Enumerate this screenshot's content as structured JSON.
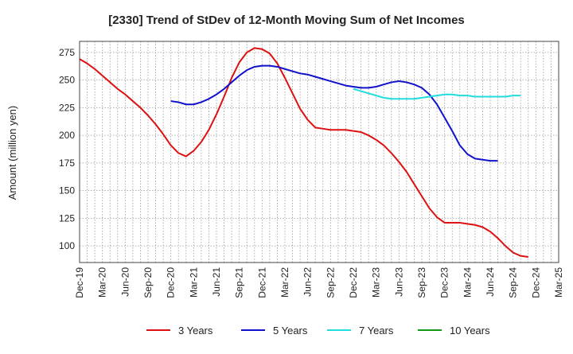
{
  "chart_data": {
    "type": "line",
    "title": "[2330]  Trend of StDev of 12-Month Moving Sum of Net Incomes",
    "xlabel": "",
    "ylabel": "Amount (million yen)",
    "ylim": [
      85,
      285
    ],
    "yticks": [
      100,
      125,
      150,
      175,
      200,
      225,
      250,
      275
    ],
    "xticks": [
      "Dec-19",
      "Mar-20",
      "Jun-20",
      "Sep-20",
      "Dec-20",
      "Mar-21",
      "Jun-21",
      "Sep-21",
      "Dec-21",
      "Mar-22",
      "Jun-22",
      "Sep-22",
      "Dec-22",
      "Mar-23",
      "Jun-23",
      "Sep-23",
      "Dec-23",
      "Mar-24",
      "Jun-24",
      "Sep-24",
      "Dec-24",
      "Mar-25"
    ],
    "grid": true,
    "legend_position": "bottom",
    "series": [
      {
        "name": "3 Years",
        "color": "#dd1111",
        "start": "Dec-19",
        "values": [
          269,
          265,
          260,
          254,
          248,
          242,
          237,
          231,
          225,
          218,
          210,
          201,
          191,
          184,
          181,
          186,
          194,
          205,
          219,
          235,
          252,
          266,
          275,
          279,
          278,
          274,
          265,
          252,
          238,
          224,
          214,
          207,
          206,
          205,
          205,
          205,
          204,
          203,
          200,
          196,
          191,
          184,
          176,
          167,
          156,
          145,
          134,
          126,
          121,
          121,
          121,
          120,
          119,
          117,
          113,
          107,
          100,
          94,
          91,
          90
        ]
      },
      {
        "name": "5 Years",
        "color": "#1111cc",
        "start": "Dec-20",
        "values": [
          231,
          230,
          228,
          228,
          230,
          233,
          237,
          242,
          248,
          254,
          259,
          262,
          263,
          263,
          262,
          260,
          258,
          256,
          255,
          253,
          251,
          249,
          247,
          245,
          244,
          243,
          243,
          244,
          246,
          248,
          249,
          248,
          246,
          243,
          237,
          228,
          216,
          204,
          191,
          183,
          179,
          178,
          177,
          177
        ]
      },
      {
        "name": "7 Years",
        "color": "#22dddd",
        "start": "Dec-22",
        "values": [
          242,
          240,
          238,
          236,
          234,
          233,
          233,
          233,
          233,
          234,
          235,
          236,
          237,
          237,
          236,
          236,
          235,
          235,
          235,
          235,
          235,
          236,
          236
        ]
      },
      {
        "name": "10 Years",
        "color": "#119911",
        "start": "Dec-24",
        "values": []
      }
    ]
  }
}
